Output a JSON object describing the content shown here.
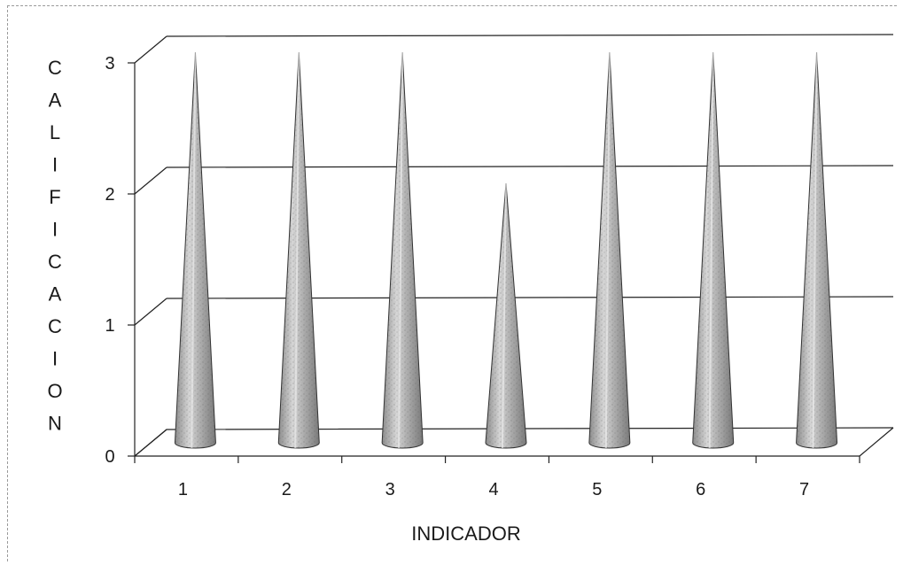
{
  "chart_data": {
    "type": "bar",
    "style": "3d-cone",
    "categories": [
      "1",
      "2",
      "3",
      "4",
      "5",
      "6",
      "7"
    ],
    "values": [
      3,
      3,
      3,
      2,
      3,
      3,
      3
    ],
    "xlabel": "INDICADOR",
    "ylabel": "CALIFICACION",
    "yticks": [
      "0",
      "1",
      "2",
      "3"
    ],
    "ylim": [
      0,
      3
    ],
    "grid": true,
    "legend": false
  }
}
